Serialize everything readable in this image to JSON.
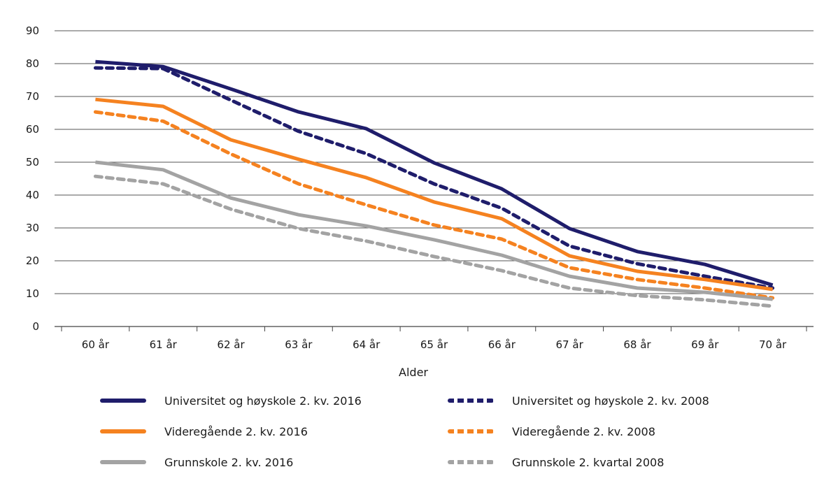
{
  "chart_data": {
    "type": "line",
    "title": "",
    "xlabel": "Alder",
    "ylabel": "",
    "ylim": [
      0,
      90
    ],
    "yticks": [
      0,
      10,
      20,
      30,
      40,
      50,
      60,
      70,
      80,
      90
    ],
    "grid": true,
    "legend_position": "bottom",
    "categories": [
      "60 år",
      "61 år",
      "62 år",
      "63 år",
      "64 år",
      "65 år",
      "66 år",
      "67 år",
      "68 år",
      "69 år",
      "70 år"
    ],
    "series": [
      {
        "name": "Universitet og høyskole 2. kv. 2016",
        "color": "#1f1d6b",
        "dashed": false,
        "values": [
          80.6,
          79.1,
          72.3,
          65.3,
          60.2,
          49.8,
          41.9,
          29.8,
          22.8,
          18.9,
          12.6
        ]
      },
      {
        "name": "Universitet og høyskole 2. kv. 2008",
        "color": "#1f1d6b",
        "dashed": true,
        "values": [
          78.7,
          78.5,
          68.9,
          59.4,
          52.6,
          43.4,
          36.0,
          24.5,
          19.1,
          15.3,
          11.7
        ]
      },
      {
        "name": "Videregående 2. kv. 2016",
        "color": "#f58220",
        "dashed": false,
        "values": [
          69.1,
          67.0,
          56.8,
          50.9,
          45.3,
          37.9,
          32.8,
          21.5,
          16.8,
          14.3,
          11.3
        ]
      },
      {
        "name": "Videregående 2. kv. 2008",
        "color": "#f58220",
        "dashed": true,
        "values": [
          65.3,
          62.5,
          52.5,
          43.4,
          37.0,
          30.9,
          26.6,
          17.9,
          14.3,
          11.7,
          8.7
        ]
      },
      {
        "name": "Grunnskole 2. kv. 2016",
        "color": "#a3a3a3",
        "dashed": false,
        "values": [
          50.0,
          47.7,
          39.1,
          34.0,
          30.6,
          26.4,
          21.7,
          15.3,
          11.7,
          10.4,
          8.3
        ]
      },
      {
        "name": "Grunnskole 2. kvartal 2008",
        "color": "#a3a3a3",
        "dashed": true,
        "values": [
          45.7,
          43.4,
          35.7,
          29.8,
          26.0,
          21.3,
          17.0,
          11.7,
          9.4,
          8.1,
          6.2
        ]
      }
    ]
  }
}
